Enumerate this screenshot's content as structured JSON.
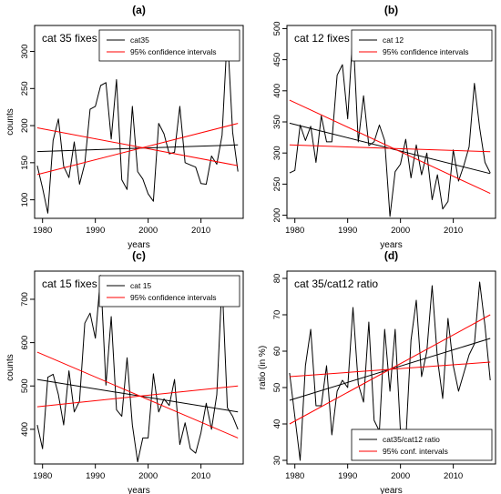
{
  "chart_data": [
    {
      "type": "line",
      "panel_label": "(a)",
      "inner_title": "cat 35 fixes",
      "xlabel": "years",
      "ylabel": "counts",
      "xlim": [
        1978.5,
        2018
      ],
      "ylim": [
        75,
        335
      ],
      "x_ticks": [
        1980,
        1990,
        2000,
        2010
      ],
      "y_ticks": [
        100,
        150,
        200,
        250,
        300
      ],
      "legend": {
        "placement": "top-right",
        "entries": [
          "cat35",
          "95% confidence intervals"
        ]
      },
      "series": [
        {
          "name": "cat35",
          "color": "#000000",
          "x": [
            1979,
            1980,
            1981,
            1982,
            1983,
            1984,
            1985,
            1986,
            1987,
            1988,
            1989,
            1990,
            1991,
            1992,
            1993,
            1994,
            1995,
            1996,
            1997,
            1998,
            1999,
            2000,
            2001,
            2002,
            2003,
            2004,
            2005,
            2006,
            2007,
            2008,
            2009,
            2010,
            2011,
            2012,
            2013,
            2014,
            2015,
            2016,
            2017
          ],
          "values": [
            146,
            116,
            82,
            180,
            209,
            145,
            130,
            178,
            121,
            149,
            222,
            226,
            254,
            258,
            182,
            262,
            127,
            114,
            226,
            138,
            128,
            108,
            98,
            203,
            189,
            162,
            164,
            226,
            150,
            147,
            144,
            122,
            121,
            159,
            148,
            187,
            325,
            191,
            138
          ]
        },
        {
          "name": "trend",
          "color": "#000000",
          "x": [
            1979,
            2017
          ],
          "values": [
            165,
            174
          ]
        },
        {
          "name": "upper 95% CI",
          "color": "#ff0000",
          "x": [
            1979,
            2017
          ],
          "values": [
            197,
            146
          ]
        },
        {
          "name": "lower 95% CI",
          "color": "#ff0000",
          "x": [
            1979,
            2017
          ],
          "values": [
            134,
            203
          ]
        }
      ]
    },
    {
      "type": "line",
      "panel_label": "(b)",
      "inner_title": "cat 12 fixes",
      "xlabel": "years",
      "ylabel": "",
      "xlim": [
        1978.5,
        2018
      ],
      "ylim": [
        195,
        505
      ],
      "x_ticks": [
        1980,
        1990,
        2000,
        2010
      ],
      "y_ticks": [
        200,
        250,
        300,
        350,
        400,
        450,
        500
      ],
      "legend": {
        "placement": "top-right",
        "entries": [
          "cat 12",
          "95% confidence intervals"
        ]
      },
      "series": [
        {
          "name": "cat 12",
          "color": "#000000",
          "x": [
            1979,
            1980,
            1981,
            1982,
            1983,
            1984,
            1985,
            1986,
            1987,
            1988,
            1989,
            1990,
            1991,
            1992,
            1993,
            1994,
            1995,
            1996,
            1997,
            1998,
            1999,
            2000,
            2001,
            2002,
            2003,
            2004,
            2005,
            2006,
            2007,
            2008,
            2009,
            2010,
            2011,
            2012,
            2013,
            2014,
            2015,
            2016,
            2017
          ],
          "values": [
            268,
            272,
            345,
            320,
            343,
            285,
            360,
            318,
            318,
            425,
            442,
            355,
            495,
            318,
            392,
            312,
            318,
            345,
            320,
            198,
            270,
            282,
            322,
            260,
            313,
            265,
            300,
            225,
            265,
            210,
            222,
            305,
            255,
            280,
            310,
            412,
            340,
            285,
            268
          ]
        },
        {
          "name": "trend",
          "color": "#000000",
          "x": [
            1979,
            2017
          ],
          "values": [
            348,
            267
          ]
        },
        {
          "name": "upper 95% CI",
          "color": "#ff0000",
          "x": [
            1979,
            2017
          ],
          "values": [
            385,
            235
          ]
        },
        {
          "name": "lower 95% CI",
          "color": "#ff0000",
          "x": [
            1979,
            2017
          ],
          "values": [
            313,
            302
          ]
        }
      ]
    },
    {
      "type": "line",
      "panel_label": "(c)",
      "inner_title": "cat 15 fixes",
      "xlabel": "years",
      "ylabel": "counts",
      "xlim": [
        1978.5,
        2018
      ],
      "ylim": [
        320,
        765
      ],
      "x_ticks": [
        1980,
        1990,
        2000,
        2010
      ],
      "y_ticks": [
        400,
        500,
        600,
        700
      ],
      "legend": {
        "placement": "top-right",
        "entries": [
          "cat 15",
          "95% confidence intervals"
        ]
      },
      "series": [
        {
          "name": "cat 15",
          "color": "#000000",
          "x": [
            1979,
            1980,
            1981,
            1982,
            1983,
            1984,
            1985,
            1986,
            1987,
            1988,
            1989,
            1990,
            1991,
            1992,
            1993,
            1994,
            1995,
            1996,
            1997,
            1998,
            1999,
            2000,
            2001,
            2002,
            2003,
            2004,
            2005,
            2006,
            2007,
            2008,
            2009,
            2010,
            2011,
            2012,
            2013,
            2014,
            2015,
            2016,
            2017
          ],
          "values": [
            410,
            355,
            520,
            527,
            480,
            410,
            535,
            440,
            465,
            645,
            668,
            610,
            755,
            502,
            660,
            445,
            430,
            565,
            410,
            325,
            380,
            380,
            528,
            440,
            470,
            455,
            515,
            365,
            415,
            355,
            345,
            392,
            460,
            400,
            480,
            742,
            450,
            430,
            400
          ]
        },
        {
          "name": "trend",
          "color": "#000000",
          "x": [
            1979,
            2017
          ],
          "values": [
            515,
            440
          ]
        },
        {
          "name": "upper 95% CI",
          "color": "#ff0000",
          "x": [
            1979,
            2017
          ],
          "values": [
            578,
            380
          ]
        },
        {
          "name": "lower 95% CI",
          "color": "#ff0000",
          "x": [
            1979,
            2017
          ],
          "values": [
            452,
            500
          ]
        }
      ]
    },
    {
      "type": "line",
      "panel_label": "(d)",
      "inner_title": "cat 35/cat12 ratio",
      "xlabel": "years",
      "ylabel": "ratio (in %)",
      "xlim": [
        1978.5,
        2018
      ],
      "ylim": [
        29,
        82
      ],
      "x_ticks": [
        1980,
        1990,
        2000,
        2010
      ],
      "y_ticks": [
        30,
        40,
        50,
        60,
        70,
        80
      ],
      "legend": {
        "placement": "bottom-right",
        "entries": [
          "cat35/cat12 ratio",
          "95% conf. intervals"
        ]
      },
      "series": [
        {
          "name": "cat35/cat12 ratio",
          "color": "#000000",
          "x": [
            1979,
            1980,
            1981,
            1982,
            1983,
            1984,
            1985,
            1986,
            1987,
            1988,
            1989,
            1990,
            1991,
            1992,
            1993,
            1994,
            1995,
            1996,
            1997,
            1998,
            1999,
            2000,
            2001,
            2002,
            2003,
            2004,
            2005,
            2006,
            2007,
            2008,
            2009,
            2010,
            2011,
            2012,
            2013,
            2014,
            2015,
            2016,
            2017
          ],
          "values": [
            54,
            42,
            30,
            56,
            66,
            45,
            45,
            56,
            37,
            49,
            52,
            50,
            72,
            51,
            46,
            68,
            41,
            38,
            66,
            49,
            66,
            38,
            35,
            63,
            74,
            53,
            60,
            78,
            58,
            47,
            69,
            56,
            49,
            54,
            59,
            62,
            79,
            67,
            52
          ]
        },
        {
          "name": "trend",
          "color": "#000000",
          "x": [
            1979,
            2017
          ],
          "values": [
            46.5,
            63.5
          ]
        },
        {
          "name": "upper 95% CI",
          "color": "#ff0000",
          "x": [
            1979,
            2017
          ],
          "values": [
            53,
            57
          ]
        },
        {
          "name": "lower 95% CI",
          "color": "#ff0000",
          "x": [
            1979,
            2017
          ],
          "values": [
            40,
            70
          ]
        }
      ]
    }
  ]
}
